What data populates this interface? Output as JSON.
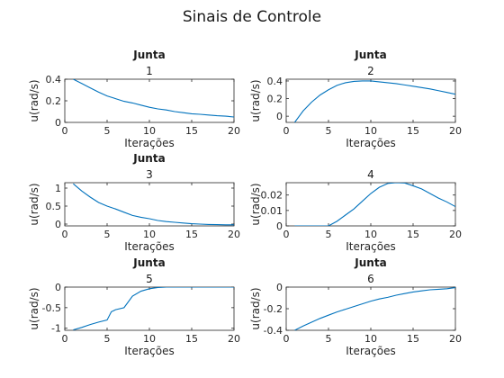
{
  "figure": {
    "title": "Sinais de Controle"
  },
  "colors": {
    "series": "#0072bd",
    "axis": "#262626",
    "background": "#ffffff"
  },
  "chart_data": [
    {
      "type": "line",
      "title": "Junta",
      "subtitle": "1",
      "xlabel": "Iterações",
      "ylabel": "u(rad/s)",
      "xlim": [
        0,
        20
      ],
      "ylim": [
        0,
        0.4
      ],
      "xticks": [
        "0",
        "5",
        "10",
        "15",
        "20"
      ],
      "xtick_values": [
        0,
        5,
        10,
        15,
        20
      ],
      "yticks": [
        "0",
        "0.2",
        "0.4"
      ],
      "ytick_values": [
        0,
        0.2,
        0.4
      ],
      "grid": false,
      "x": [
        1,
        2,
        3,
        4,
        5,
        6,
        7,
        8,
        9,
        10,
        11,
        12,
        13,
        14,
        15,
        16,
        17,
        18,
        19,
        20
      ],
      "y": [
        0.4,
        0.36,
        0.32,
        0.28,
        0.245,
        0.22,
        0.195,
        0.18,
        0.16,
        0.14,
        0.125,
        0.115,
        0.1,
        0.09,
        0.08,
        0.075,
        0.068,
        0.062,
        0.058,
        0.05
      ]
    },
    {
      "type": "line",
      "title": "Junta",
      "subtitle": "2",
      "xlabel": "Iterações",
      "ylabel": "u(rad/s)",
      "xlim": [
        0,
        20
      ],
      "ylim": [
        -0.07,
        0.42
      ],
      "xticks": [
        "0",
        "5",
        "10",
        "15",
        "20"
      ],
      "xtick_values": [
        0,
        5,
        10,
        15,
        20
      ],
      "yticks": [
        "0",
        "0.2",
        "0.4"
      ],
      "ytick_values": [
        0,
        0.2,
        0.4
      ],
      "grid": false,
      "x": [
        1,
        2,
        3,
        4,
        5,
        6,
        7,
        8,
        9,
        10,
        11,
        12,
        13,
        14,
        15,
        16,
        17,
        18,
        19,
        20
      ],
      "y": [
        -0.07,
        0.06,
        0.16,
        0.24,
        0.3,
        0.35,
        0.38,
        0.395,
        0.4,
        0.4,
        0.39,
        0.38,
        0.37,
        0.355,
        0.34,
        0.325,
        0.31,
        0.29,
        0.27,
        0.25
      ]
    },
    {
      "type": "line",
      "title": "Junta",
      "subtitle": "3",
      "xlabel": "Iterações",
      "ylabel": "u(rad/s)",
      "xlim": [
        0,
        20
      ],
      "ylim": [
        -0.05,
        1.15
      ],
      "xticks": [
        "0",
        "5",
        "10",
        "15",
        "20"
      ],
      "xtick_values": [
        0,
        5,
        10,
        15,
        20
      ],
      "yticks": [
        "0",
        "0.5",
        "1"
      ],
      "ytick_values": [
        0,
        0.5,
        1
      ],
      "grid": false,
      "x": [
        1,
        2,
        3,
        4,
        5,
        6,
        7,
        8,
        9,
        10,
        11,
        12,
        13,
        14,
        15,
        16,
        17,
        18,
        19,
        20
      ],
      "y": [
        1.12,
        0.92,
        0.75,
        0.6,
        0.5,
        0.42,
        0.33,
        0.24,
        0.19,
        0.15,
        0.1,
        0.07,
        0.05,
        0.03,
        0.01,
        0.0,
        -0.01,
        -0.015,
        -0.02,
        -0.02
      ]
    },
    {
      "type": "line",
      "title": "",
      "subtitle": "4",
      "xlabel": "Iterações",
      "ylabel": "u(rad/s)",
      "xlim": [
        0,
        20
      ],
      "ylim": [
        0,
        0.028
      ],
      "xticks": [
        "0",
        "5",
        "10",
        "15",
        "20"
      ],
      "xtick_values": [
        0,
        5,
        10,
        15,
        20
      ],
      "yticks": [
        "0",
        "0.01",
        "0.02"
      ],
      "ytick_values": [
        0,
        0.01,
        0.02
      ],
      "grid": false,
      "x": [
        1,
        2,
        3,
        4,
        5,
        6,
        7,
        8,
        9,
        10,
        11,
        12,
        13,
        14,
        15,
        16,
        17,
        18,
        19,
        20
      ],
      "y": [
        0,
        0,
        0,
        0,
        0,
        0.003,
        0.007,
        0.011,
        0.016,
        0.021,
        0.025,
        0.0275,
        0.028,
        0.0278,
        0.026,
        0.024,
        0.021,
        0.018,
        0.0155,
        0.0125
      ]
    },
    {
      "type": "line",
      "title": "Junta",
      "subtitle": "5",
      "xlabel": "Iterações",
      "ylabel": "u(rad/s)",
      "xlim": [
        0,
        20
      ],
      "ylim": [
        -1.05,
        0
      ],
      "xticks": [
        "0",
        "5",
        "10",
        "15",
        "20"
      ],
      "xtick_values": [
        0,
        5,
        10,
        15,
        20
      ],
      "yticks": [
        "-1",
        "-0.5",
        "0"
      ],
      "ytick_values": [
        -1,
        -0.5,
        0
      ],
      "grid": false,
      "x": [
        1,
        2,
        3,
        4,
        5,
        5.5,
        6,
        7,
        8,
        9,
        10,
        11,
        12,
        13,
        14,
        15,
        16,
        17,
        18,
        19,
        20
      ],
      "y": [
        -1.04,
        -0.98,
        -0.91,
        -0.85,
        -0.8,
        -0.6,
        -0.55,
        -0.5,
        -0.22,
        -0.1,
        -0.04,
        -0.01,
        0,
        0,
        0,
        0,
        0,
        0,
        0,
        0,
        0
      ]
    },
    {
      "type": "line",
      "title": "Junta",
      "subtitle": "6",
      "xlabel": "Iterações",
      "ylabel": "u(rad/s)",
      "xlim": [
        0,
        20
      ],
      "ylim": [
        -0.4,
        0
      ],
      "xticks": [
        "0",
        "5",
        "10",
        "15",
        "20"
      ],
      "xtick_values": [
        0,
        5,
        10,
        15,
        20
      ],
      "yticks": [
        "-0.4",
        "-0.2",
        "0"
      ],
      "ytick_values": [
        -0.4,
        -0.2,
        0
      ],
      "grid": false,
      "x": [
        1,
        2,
        3,
        4,
        5,
        6,
        7,
        8,
        9,
        10,
        11,
        12,
        13,
        14,
        15,
        16,
        17,
        18,
        19,
        20
      ],
      "y": [
        -0.4,
        -0.36,
        -0.325,
        -0.29,
        -0.26,
        -0.23,
        -0.205,
        -0.18,
        -0.155,
        -0.13,
        -0.11,
        -0.095,
        -0.075,
        -0.06,
        -0.045,
        -0.035,
        -0.025,
        -0.02,
        -0.015,
        -0.005
      ]
    }
  ]
}
